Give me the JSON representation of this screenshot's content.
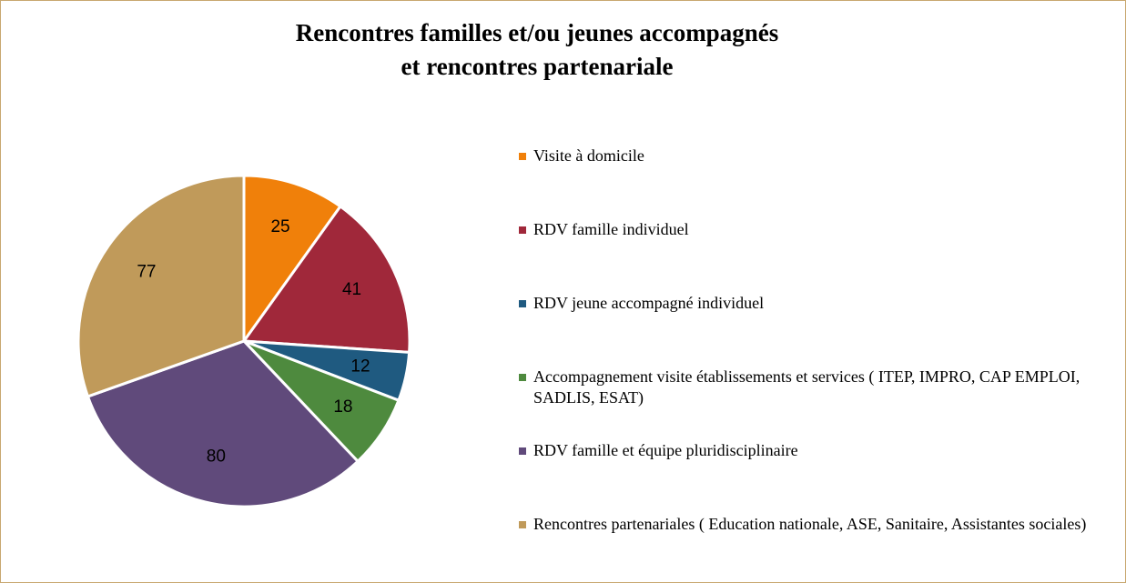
{
  "chart_data": {
    "type": "pie",
    "title": [
      "Rencontres familles et/ou jeunes accompagnés",
      "et rencontres partenariale"
    ],
    "categories": [
      "Visite à domicile",
      "RDV famille individuel",
      "RDV jeune accompagné individuel",
      "Accompagnement visite établissements et services ( ITEP, IMPRO, CAP EMPLOI, SADLIS, ESAT)",
      "RDV  famille et équipe pluridisciplinaire",
      "Rencontres partenariales ( Education nationale, ASE, Sanitaire, Assistantes sociales)"
    ],
    "values": [
      25,
      41,
      12,
      18,
      80,
      77
    ],
    "colors": [
      "#f0800a",
      "#a0283a",
      "#1f5a80",
      "#4e8a3e",
      "#604a7b",
      "#c09a5a"
    ],
    "legend": "right"
  }
}
